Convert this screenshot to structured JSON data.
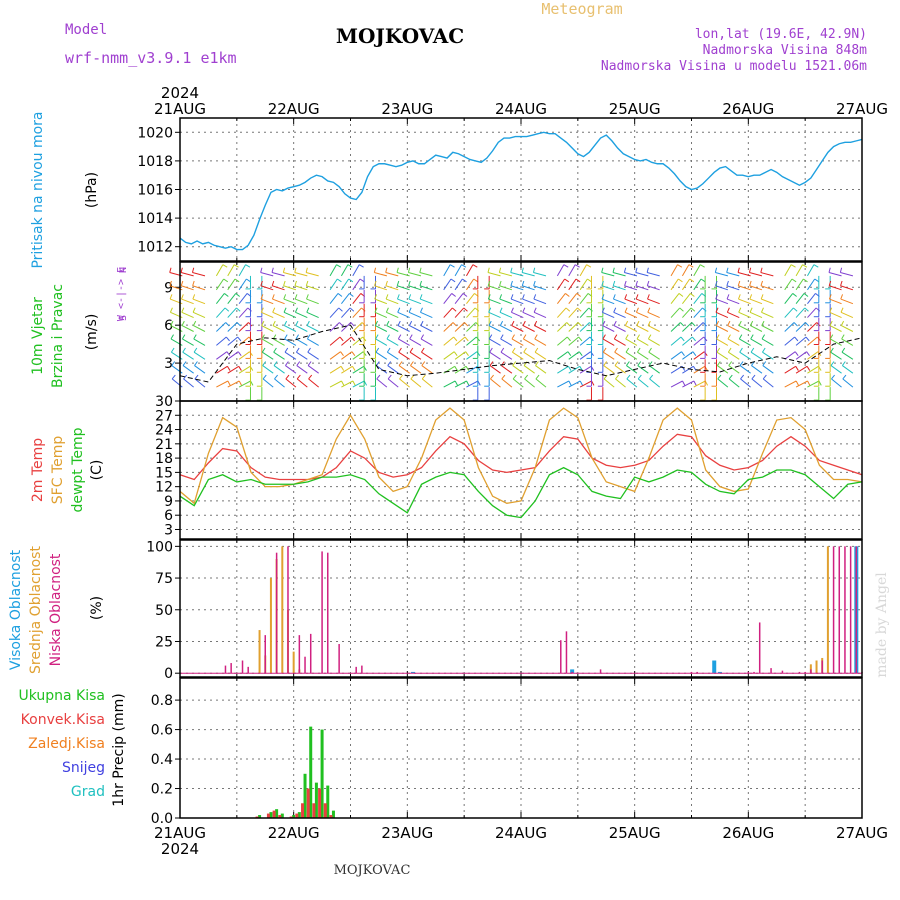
{
  "header": {
    "model_label": "Model",
    "model_name": "wrf-nmm_v3.9.1 e1km",
    "station": "MOJKOVAC",
    "product": "Meteogram",
    "coords": "lon,lat (19.6E, 42.9N)",
    "elevation": "Nadmorska Visina 848m",
    "model_elevation": "Nadmorska Visina u modelu 1521.06m"
  },
  "footer": {
    "station": "MOJKOVAC"
  },
  "watermark": "made by Angel",
  "colors": {
    "pressure": "#1ea0e0",
    "temp2m": "#e84040",
    "sfc": "#e0a030",
    "dew": "#20c020",
    "high_cloud": "#1ea0e0",
    "mid_cloud": "#e0a030",
    "low_cloud": "#d02080",
    "total_precip": "#20c020",
    "conv_precip": "#e84040",
    "freezing": "#f08020",
    "snow": "#4040e0",
    "hail": "#20c0c0",
    "header_purple": "#a040d0",
    "product_gold": "#e8c070"
  },
  "chart_data": [
    {
      "type": "line",
      "id": "pressure",
      "ylabel_lines": [
        "Pritisak na nivou mora"
      ],
      "unit": "(hPa)",
      "ylim": [
        1011,
        1021
      ],
      "yticks": [
        1012,
        1014,
        1016,
        1018,
        1020
      ],
      "x_day_start": 21,
      "x": [
        0,
        0.05,
        0.1,
        0.15,
        0.2,
        0.25,
        0.3,
        0.35,
        0.4,
        0.45,
        0.5,
        0.55,
        0.6,
        0.65,
        0.7,
        0.75,
        0.8,
        0.85,
        0.9,
        0.95,
        1.0,
        1.05,
        1.1,
        1.15,
        1.2,
        1.25,
        1.3,
        1.35,
        1.4,
        1.45,
        1.5,
        1.55,
        1.6,
        1.65,
        1.7,
        1.75,
        1.8,
        1.85,
        1.9,
        1.95,
        2.0,
        2.05,
        2.1,
        2.15,
        2.2,
        2.25,
        2.3,
        2.35,
        2.4,
        2.45,
        2.5,
        2.55,
        2.6,
        2.65,
        2.7,
        2.75,
        2.8,
        2.85,
        2.9,
        2.95,
        3.0,
        3.05,
        3.1,
        3.15,
        3.2,
        3.25,
        3.3,
        3.35,
        3.4,
        3.45,
        3.5,
        3.55,
        3.6,
        3.65,
        3.7,
        3.75,
        3.8,
        3.85,
        3.9,
        3.95,
        4.0,
        4.05,
        4.1,
        4.15,
        4.2,
        4.25,
        4.3,
        4.35,
        4.4,
        4.45,
        4.5,
        4.55,
        4.6,
        4.65,
        4.7,
        4.75,
        4.8,
        4.85,
        4.9,
        4.95,
        5.0,
        5.05,
        5.1,
        5.15,
        5.2,
        5.25,
        5.3,
        5.35,
        5.4,
        5.45,
        5.5,
        5.55,
        5.6,
        5.65,
        5.7,
        5.75,
        5.8,
        5.85,
        5.9,
        5.95,
        6.0
      ],
      "values": [
        1012.6,
        1012.3,
        1012.2,
        1012.4,
        1012.2,
        1012.3,
        1012.1,
        1012.0,
        1011.9,
        1012.0,
        1011.8,
        1011.8,
        1012.1,
        1012.8,
        1013.9,
        1014.9,
        1015.8,
        1016.0,
        1015.9,
        1016.1,
        1016.2,
        1016.3,
        1016.5,
        1016.8,
        1017.0,
        1016.9,
        1016.6,
        1016.5,
        1016.2,
        1015.7,
        1015.4,
        1015.3,
        1015.8,
        1016.9,
        1017.6,
        1017.8,
        1017.8,
        1017.7,
        1017.6,
        1017.7,
        1017.9,
        1018.0,
        1017.8,
        1017.8,
        1018.1,
        1018.4,
        1018.3,
        1018.2,
        1018.6,
        1018.5,
        1018.3,
        1018.1,
        1018.0,
        1017.9,
        1018.2,
        1018.7,
        1019.3,
        1019.6,
        1019.6,
        1019.7,
        1019.7,
        1019.7,
        1019.8,
        1019.9,
        1020.0,
        1019.9,
        1019.9,
        1019.6,
        1019.3,
        1018.9,
        1018.5,
        1018.3,
        1018.6,
        1019.1,
        1019.6,
        1019.8,
        1019.4,
        1018.9,
        1018.5,
        1018.3,
        1018.1,
        1018.0,
        1018.1,
        1017.9,
        1017.8,
        1017.8,
        1017.5,
        1017.1,
        1016.6,
        1016.2,
        1016.0,
        1016.1,
        1016.4,
        1016.8,
        1017.2,
        1017.5,
        1017.6,
        1017.3,
        1017.0,
        1017.0,
        1016.9,
        1017.0,
        1017.0,
        1017.2,
        1017.4,
        1017.2,
        1016.9,
        1016.7,
        1016.5,
        1016.3,
        1016.5,
        1016.8,
        1017.4,
        1018.0,
        1018.6,
        1019.0,
        1019.2,
        1019.3,
        1019.3,
        1019.4,
        1019.5
      ]
    },
    {
      "type": "barbs",
      "id": "wind",
      "ylabel_lines": [
        "10m Vjetar",
        "Brzina i Pravac"
      ],
      "unit": "(m/s)",
      "ylim": [
        0,
        11
      ],
      "yticks": [
        3,
        6,
        9
      ],
      "compass": [
        "N",
        "W <-|-> E",
        "S"
      ],
      "speed_x": [
        0,
        0.25,
        0.5,
        0.75,
        1.0,
        1.25,
        1.5,
        1.75,
        2.0,
        2.25,
        2.5,
        2.75,
        3.0,
        3.25,
        3.5,
        3.75,
        4.0,
        4.25,
        4.5,
        4.75,
        5.0,
        5.25,
        5.5,
        5.75,
        6.0
      ],
      "speed_values": [
        2.0,
        1.5,
        4.5,
        5.0,
        4.8,
        5.5,
        6.0,
        2.5,
        2.0,
        2.2,
        2.5,
        2.8,
        3.0,
        3.2,
        2.5,
        2.0,
        2.5,
        3.0,
        2.5,
        2.3,
        3.0,
        3.5,
        3.0,
        4.5,
        5.0
      ],
      "band_colors": [
        "#e02020",
        "#f08020",
        "#e0c020",
        "#c0d020",
        "#60d040",
        "#20c060",
        "#20c0c0",
        "#2090e0",
        "#4060e0",
        "#8040d0"
      ]
    },
    {
      "type": "line",
      "id": "temperature",
      "ylabel_lines": [
        "2m Temp",
        "SFC Temp",
        "dewpt Temp"
      ],
      "unit": "(C)",
      "ylim": [
        1,
        30
      ],
      "yticks": [
        3,
        6,
        9,
        12,
        15,
        18,
        21,
        24,
        27,
        30
      ],
      "x": [
        0,
        0.125,
        0.25,
        0.375,
        0.5,
        0.625,
        0.75,
        0.875,
        1.0,
        1.125,
        1.25,
        1.375,
        1.5,
        1.625,
        1.75,
        1.875,
        2.0,
        2.125,
        2.25,
        2.375,
        2.5,
        2.625,
        2.75,
        2.875,
        3.0,
        3.125,
        3.25,
        3.375,
        3.5,
        3.625,
        3.75,
        3.875,
        4.0,
        4.125,
        4.25,
        4.375,
        4.5,
        4.625,
        4.75,
        4.875,
        5.0,
        5.125,
        5.25,
        5.375,
        5.5,
        5.625,
        5.75,
        5.875,
        6.0
      ],
      "series": [
        {
          "name": "2m Temp",
          "values": [
            14.5,
            13.5,
            17.0,
            20.0,
            19.5,
            16.0,
            14.0,
            13.5,
            13.5,
            13.5,
            14.0,
            16.0,
            19.5,
            18.0,
            15.0,
            14.0,
            14.5,
            16.0,
            19.5,
            22.5,
            21.0,
            17.5,
            15.5,
            15.0,
            15.5,
            16.0,
            19.5,
            22.5,
            22.0,
            18.0,
            16.5,
            16.0,
            16.5,
            17.5,
            20.5,
            23.0,
            22.5,
            18.5,
            16.5,
            15.5,
            16.0,
            17.5,
            20.5,
            22.5,
            20.5,
            17.5,
            16.5,
            15.5,
            14.5
          ]
        },
        {
          "name": "SFC Temp",
          "values": [
            11.0,
            8.5,
            19.0,
            26.5,
            24.5,
            15.0,
            12.0,
            12.0,
            12.5,
            13.5,
            14.5,
            22.0,
            27.0,
            22.0,
            14.0,
            11.0,
            12.0,
            18.0,
            26.0,
            28.5,
            26.0,
            16.0,
            10.0,
            8.5,
            9.0,
            16.0,
            26.0,
            28.5,
            26.5,
            18.0,
            13.0,
            12.0,
            11.0,
            18.0,
            26.0,
            28.5,
            26.0,
            15.5,
            12.0,
            11.0,
            11.5,
            19.0,
            26.0,
            26.5,
            24.0,
            16.5,
            13.5,
            13.5,
            13.0
          ]
        },
        {
          "name": "dewpt Temp",
          "values": [
            10.0,
            8.0,
            13.5,
            14.5,
            13.0,
            13.5,
            12.5,
            12.5,
            12.5,
            13.0,
            14.0,
            14.0,
            14.5,
            13.5,
            10.5,
            8.5,
            6.5,
            12.5,
            14.0,
            15.0,
            14.5,
            11.0,
            8.0,
            6.0,
            5.5,
            9.0,
            14.5,
            16.0,
            14.5,
            11.0,
            10.0,
            9.5,
            14.0,
            13.0,
            14.0,
            15.5,
            15.0,
            12.5,
            11.0,
            10.5,
            13.5,
            14.0,
            15.5,
            15.5,
            14.5,
            12.0,
            9.5,
            12.5,
            13.0
          ]
        }
      ]
    },
    {
      "type": "bar",
      "id": "clouds",
      "ylabel_lines": [
        "Visoka Oblacnost",
        "Srednja Oblacnost",
        "Niska Oblacnost"
      ],
      "unit": "(%)",
      "ylim": [
        -3,
        105
      ],
      "yticks": [
        0,
        25,
        50,
        75,
        100
      ],
      "series": [
        {
          "name": "Visoka Oblacnost",
          "x": [
            2.05,
            3.45,
            4.7,
            4.75,
            5.95
          ],
          "values": [
            1,
            3,
            10,
            1,
            100
          ]
        },
        {
          "name": "Srednja Oblacnost",
          "x": [
            0.7,
            0.75,
            0.8,
            0.85,
            0.9,
            0.95,
            1.0,
            1.05,
            5.55,
            5.6,
            5.65,
            5.7
          ],
          "values": [
            34,
            14,
            75,
            90,
            100,
            50,
            17,
            3,
            7,
            10,
            12,
            100
          ]
        },
        {
          "name": "Niska Oblacnost",
          "x": [
            0.4,
            0.45,
            0.55,
            0.6,
            0.75,
            0.85,
            0.95,
            1.05,
            1.1,
            1.15,
            1.25,
            1.3,
            1.4,
            1.55,
            1.6,
            3.35,
            3.4,
            3.45,
            3.7,
            4.5,
            4.55,
            5.0,
            5.05,
            5.1,
            5.2,
            5.3,
            5.45,
            5.5,
            5.55,
            5.65,
            5.75,
            5.8,
            5.85,
            5.9,
            5.95,
            6.0
          ],
          "values": [
            6,
            8,
            10,
            5,
            30,
            95,
            100,
            30,
            13,
            31,
            96,
            95,
            23,
            5,
            6,
            26,
            33,
            1,
            3,
            1,
            1,
            1,
            1,
            40,
            4,
            2,
            1,
            1,
            3,
            10,
            100,
            100,
            100,
            100,
            100,
            1
          ]
        }
      ]
    },
    {
      "type": "bar",
      "id": "precipitation",
      "ylabel_lines": [
        "1hr Precip"
      ],
      "unit": "(mm)",
      "legend": [
        "Ukupna Kisa",
        "Konvek.Kisa",
        "Zaledj.Kisa",
        "Snijeg",
        "Grad"
      ],
      "ylim": [
        0,
        0.95
      ],
      "yticks": [
        0.0,
        0.2,
        0.4,
        0.6,
        0.8
      ],
      "x": [
        0.7,
        0.8,
        0.85,
        0.9,
        1.0,
        1.05,
        1.1,
        1.15,
        1.2,
        1.25,
        1.3,
        1.35
      ],
      "series": [
        {
          "name": "Ukupna Kisa",
          "values": [
            0.02,
            0.04,
            0.06,
            0.03,
            0.02,
            0.04,
            0.3,
            0.62,
            0.24,
            0.6,
            0.22,
            0.05
          ]
        },
        {
          "name": "Konvek.Kisa",
          "values": [
            0.01,
            0.03,
            0.05,
            0.02,
            0.01,
            0.03,
            0.1,
            0.2,
            0.1,
            0.2,
            0.1,
            0.02
          ]
        }
      ]
    }
  ],
  "x_axis": {
    "year": "2024",
    "labels": [
      "21AUG",
      "22AUG",
      "23AUG",
      "24AUG",
      "25AUG",
      "26AUG",
      "27AUG"
    ]
  }
}
